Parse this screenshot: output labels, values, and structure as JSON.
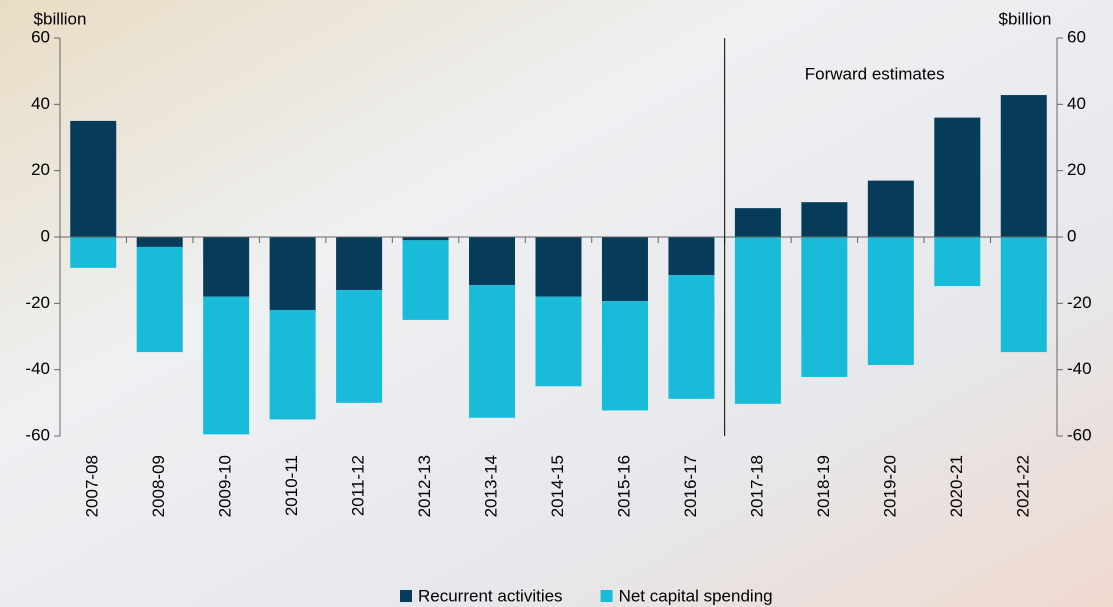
{
  "chart_data": {
    "type": "bar",
    "stacked": true,
    "categories": [
      "2007-08",
      "2008-09",
      "2009-10",
      "2010-11",
      "2011-12",
      "2012-13",
      "2013-14",
      "2014-15",
      "2015-16",
      "2016-17",
      "2017-18",
      "2018-19",
      "2019-20",
      "2020-21",
      "2021-22"
    ],
    "series": [
      {
        "name": "Recurrent activities",
        "color": "#073b5a",
        "values": [
          35,
          -3,
          -18,
          -22,
          -16,
          -1,
          -14.5,
          -18,
          -19.3,
          -11.5,
          8.7,
          10.5,
          17,
          36,
          42.8
        ]
      },
      {
        "name": "Net capital spending",
        "color": "#18bcd8",
        "values": [
          -9.3,
          -31.7,
          -41.5,
          -33,
          -34,
          -24,
          -40,
          -27,
          -33,
          -37.3,
          -50.3,
          -42.2,
          -38.6,
          -14.8,
          -34.7
        ]
      }
    ],
    "ylim": [
      -60,
      60
    ],
    "yticks": [
      -60,
      -40,
      -20,
      0,
      20,
      40,
      60
    ],
    "y2lim": [
      -60,
      60
    ],
    "y2ticks": [
      -60,
      -40,
      -20,
      0,
      20,
      40,
      60
    ],
    "ylabel": "$billion",
    "y2label": "$billion",
    "annotation": {
      "text": "Forward estimates",
      "category": "2017-18"
    },
    "legend": "bottom"
  }
}
